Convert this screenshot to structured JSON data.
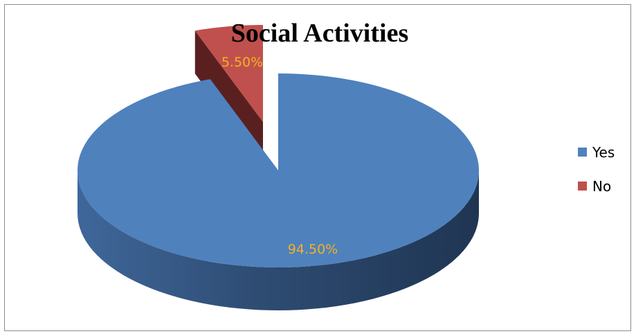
{
  "chart_data": {
    "type": "pie",
    "title": "Social Activities",
    "style": "3d-exploded",
    "categories": [
      "Yes",
      "No"
    ],
    "values": [
      94.5,
      5.5
    ],
    "data_labels": [
      "94.50%",
      "5.50%"
    ],
    "colors": [
      "#4F81BD",
      "#C0504D"
    ],
    "label_color": "#F2B321",
    "legend": {
      "placement": "right",
      "entries": [
        "Yes",
        "No"
      ]
    }
  }
}
